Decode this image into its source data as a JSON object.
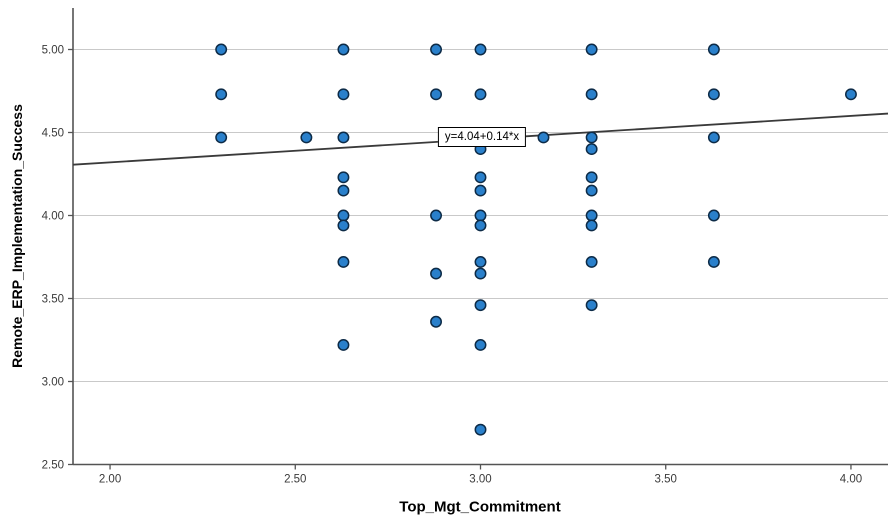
{
  "chart": {
    "y_axis_title": "Remote_ERP_Implementation_Success",
    "x_axis_title": "Top_Mgt_Commitment",
    "equation_label": "y=4.04+0.14*x",
    "colors": {
      "point_fill": "#2a80cb",
      "point_stroke": "#0d2b47",
      "grid": "#c9c9c9",
      "spine": "#545454",
      "fit_line": "#3a3a3a",
      "tick_label": "#3a3a3a",
      "background": "#ffffff"
    }
  },
  "chart_data": {
    "type": "scatter",
    "title": "",
    "xlabel": "Top_Mgt_Commitment",
    "ylabel": "Remote_ERP_Implementation_Success",
    "xlim": [
      1.9,
      4.1
    ],
    "ylim": [
      2.5,
      5.25
    ],
    "x_ticks": [
      2.0,
      2.5,
      3.0,
      3.5,
      4.0
    ],
    "y_ticks": [
      2.5,
      3.0,
      3.5,
      4.0,
      4.5,
      5.0
    ],
    "grid": true,
    "legend": "none",
    "fit_line": {
      "intercept": 4.04,
      "slope": 0.14,
      "label": "y=4.04+0.14*x"
    },
    "points": [
      [
        2.3,
        5.0
      ],
      [
        2.3,
        4.73
      ],
      [
        2.3,
        4.47
      ],
      [
        2.53,
        4.47
      ],
      [
        2.63,
        5.0
      ],
      [
        2.63,
        4.73
      ],
      [
        2.63,
        4.47
      ],
      [
        2.63,
        4.23
      ],
      [
        2.63,
        4.15
      ],
      [
        2.63,
        4.0
      ],
      [
        2.63,
        3.94
      ],
      [
        2.63,
        3.72
      ],
      [
        2.63,
        3.22
      ],
      [
        2.88,
        5.0
      ],
      [
        2.88,
        4.73
      ],
      [
        2.88,
        4.0
      ],
      [
        2.88,
        3.65
      ],
      [
        2.88,
        3.36
      ],
      [
        3.0,
        5.0
      ],
      [
        3.0,
        4.73
      ],
      [
        3.0,
        4.4
      ],
      [
        3.0,
        4.23
      ],
      [
        3.0,
        4.15
      ],
      [
        3.0,
        4.0
      ],
      [
        3.0,
        3.94
      ],
      [
        3.0,
        3.72
      ],
      [
        3.0,
        3.65
      ],
      [
        3.0,
        3.46
      ],
      [
        3.0,
        3.22
      ],
      [
        3.0,
        2.71
      ],
      [
        3.17,
        4.47
      ],
      [
        3.3,
        5.0
      ],
      [
        3.3,
        4.73
      ],
      [
        3.3,
        4.47
      ],
      [
        3.3,
        4.4
      ],
      [
        3.3,
        4.23
      ],
      [
        3.3,
        4.15
      ],
      [
        3.3,
        4.0
      ],
      [
        3.3,
        3.94
      ],
      [
        3.3,
        3.72
      ],
      [
        3.3,
        3.46
      ],
      [
        3.63,
        5.0
      ],
      [
        3.63,
        4.73
      ],
      [
        3.63,
        4.47
      ],
      [
        3.63,
        4.0
      ],
      [
        3.63,
        3.72
      ],
      [
        4.0,
        4.73
      ]
    ]
  }
}
